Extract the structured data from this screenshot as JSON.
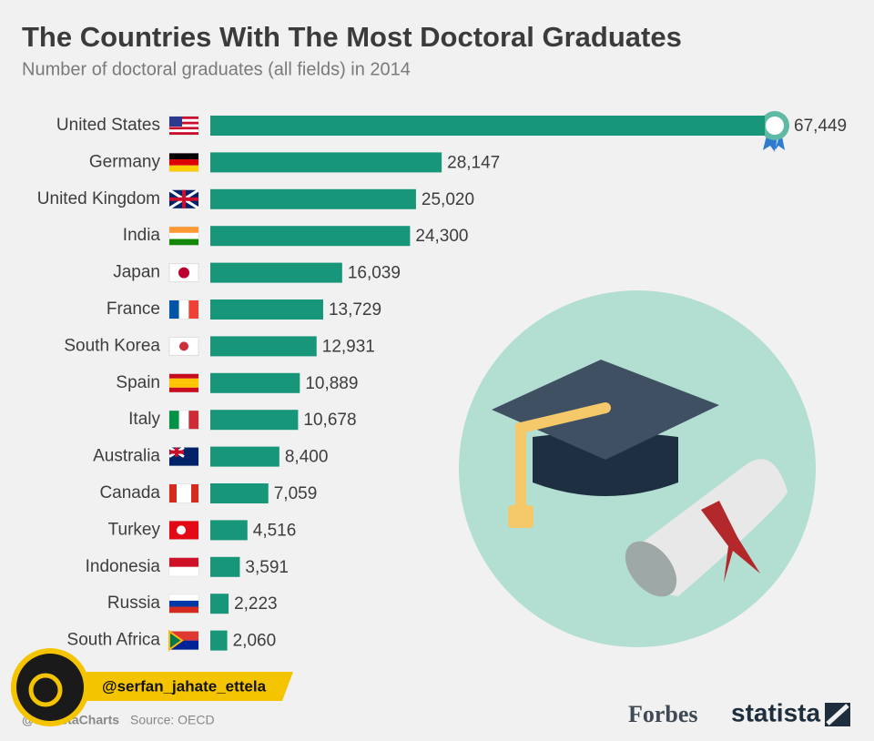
{
  "chart_data": {
    "type": "bar",
    "orientation": "horizontal",
    "title": "The Countries With The Most Doctoral Graduates",
    "subtitle": "Number of doctoral graduates (all fields) in 2014",
    "categories": [
      "United States",
      "Germany",
      "United Kingdom",
      "India",
      "Japan",
      "France",
      "South Korea",
      "Spain",
      "Italy",
      "Australia",
      "Canada",
      "Turkey",
      "Indonesia",
      "Russia",
      "South Africa"
    ],
    "values": [
      67449,
      28147,
      25020,
      24300,
      16039,
      13729,
      12931,
      10889,
      10678,
      8400,
      7059,
      4516,
      3591,
      2223,
      2060
    ],
    "value_labels": [
      "67,449",
      "28,147",
      "25,020",
      "24,300",
      "16,039",
      "13,729",
      "12,931",
      "10,889",
      "10,678",
      "8,400",
      "7,059",
      "4,516",
      "3,591",
      "2,223",
      "2,060"
    ],
    "color": "#17967a",
    "source": "Source: OECD",
    "credit": "@statistaCharts",
    "brands": [
      "Forbes",
      "statista"
    ],
    "watermark": "@serfan_jahate_ettela"
  }
}
